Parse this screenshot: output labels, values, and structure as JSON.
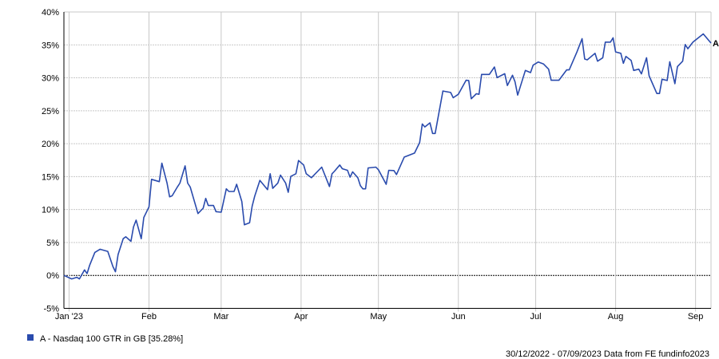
{
  "chart_data": {
    "type": "line",
    "title": "",
    "xlabel": "",
    "ylabel": "",
    "xlim": [
      "2022-12-30",
      "2023-09-07"
    ],
    "ylim": [
      -5,
      40
    ],
    "y_ticks": [
      -5,
      0,
      5,
      10,
      15,
      20,
      25,
      30,
      35,
      40
    ],
    "y_tick_labels": [
      "-5%",
      "0%",
      "5%",
      "10%",
      "15%",
      "20%",
      "25%",
      "30%",
      "35%",
      "40%"
    ],
    "x_ticks": [
      "2023-01-01",
      "2023-02-01",
      "2023-03-01",
      "2023-04-01",
      "2023-05-01",
      "2023-06-01",
      "2023-07-01",
      "2023-08-01",
      "2023-09-01"
    ],
    "x_tick_labels": [
      "Jan '23",
      "Feb",
      "Mar",
      "Apr",
      "May",
      "Jun",
      "Jul",
      "Aug",
      "Sep"
    ],
    "grid": true,
    "legend_position": "bottom-left",
    "series": [
      {
        "name": "A - Nasdaq 100 GTR in GB [35.28%]",
        "end_label": "A",
        "color": "#2a4bad",
        "points": [
          [
            "2022-12-30",
            0.0
          ],
          [
            "2023-01-02",
            -0.53
          ],
          [
            "2023-01-04",
            -0.29
          ],
          [
            "2023-01-05",
            -0.53
          ],
          [
            "2023-01-07",
            0.84
          ],
          [
            "2023-01-08",
            0.28
          ],
          [
            "2023-01-09",
            1.56
          ],
          [
            "2023-01-11",
            3.49
          ],
          [
            "2023-01-13",
            3.97
          ],
          [
            "2023-01-16",
            3.65
          ],
          [
            "2023-01-18",
            1.36
          ],
          [
            "2023-01-19",
            0.56
          ],
          [
            "2023-01-20",
            3.17
          ],
          [
            "2023-01-22",
            5.58
          ],
          [
            "2023-01-23",
            5.87
          ],
          [
            "2023-01-25",
            5.18
          ],
          [
            "2023-01-26",
            7.35
          ],
          [
            "2023-01-27",
            8.4
          ],
          [
            "2023-01-29",
            5.58
          ],
          [
            "2023-01-30",
            8.8
          ],
          [
            "2023-02-01",
            10.41
          ],
          [
            "2023-02-02",
            14.59
          ],
          [
            "2023-02-05",
            14.23
          ],
          [
            "2023-02-06",
            17.04
          ],
          [
            "2023-02-08",
            14.02
          ],
          [
            "2023-02-09",
            11.93
          ],
          [
            "2023-02-10",
            12.09
          ],
          [
            "2023-02-12",
            13.42
          ],
          [
            "2023-02-13",
            14.02
          ],
          [
            "2023-02-15",
            16.63
          ],
          [
            "2023-02-16",
            14.02
          ],
          [
            "2023-02-17",
            13.42
          ],
          [
            "2023-02-20",
            9.39
          ],
          [
            "2023-02-22",
            10.2
          ],
          [
            "2023-02-23",
            11.69
          ],
          [
            "2023-02-24",
            10.61
          ],
          [
            "2023-02-26",
            10.61
          ],
          [
            "2023-02-27",
            9.68
          ],
          [
            "2023-03-01",
            9.6
          ],
          [
            "2023-03-03",
            13.14
          ],
          [
            "2023-03-04",
            12.74
          ],
          [
            "2023-03-06",
            12.74
          ],
          [
            "2023-03-07",
            13.83
          ],
          [
            "2023-03-09",
            11.22
          ],
          [
            "2023-03-10",
            7.68
          ],
          [
            "2023-03-12",
            8.0
          ],
          [
            "2023-03-13",
            10.49
          ],
          [
            "2023-03-14",
            12.02
          ],
          [
            "2023-03-16",
            14.43
          ],
          [
            "2023-03-19",
            13.02
          ],
          [
            "2023-03-20",
            15.44
          ],
          [
            "2023-03-21",
            13.22
          ],
          [
            "2023-03-23",
            14.03
          ],
          [
            "2023-03-24",
            15.23
          ],
          [
            "2023-03-26",
            14.03
          ],
          [
            "2023-03-27",
            12.62
          ],
          [
            "2023-03-28",
            15.03
          ],
          [
            "2023-03-30",
            15.44
          ],
          [
            "2023-03-31",
            17.45
          ],
          [
            "2023-04-02",
            16.77
          ],
          [
            "2023-04-03",
            15.44
          ],
          [
            "2023-04-05",
            14.83
          ],
          [
            "2023-04-09",
            16.44
          ],
          [
            "2023-04-12",
            13.5
          ],
          [
            "2023-04-13",
            15.44
          ],
          [
            "2023-04-14",
            15.84
          ],
          [
            "2023-04-16",
            16.77
          ],
          [
            "2023-04-17",
            16.2
          ],
          [
            "2023-04-19",
            15.96
          ],
          [
            "2023-04-20",
            14.91
          ],
          [
            "2023-04-21",
            15.72
          ],
          [
            "2023-04-23",
            14.83
          ],
          [
            "2023-04-24",
            13.62
          ],
          [
            "2023-04-25",
            13.15
          ],
          [
            "2023-04-26",
            13.15
          ],
          [
            "2023-04-27",
            16.32
          ],
          [
            "2023-04-30",
            16.44
          ],
          [
            "2023-05-01",
            16.04
          ],
          [
            "2023-05-04",
            13.83
          ],
          [
            "2023-05-05",
            15.96
          ],
          [
            "2023-05-07",
            15.92
          ],
          [
            "2023-05-08",
            15.31
          ],
          [
            "2023-05-11",
            17.97
          ],
          [
            "2023-05-15",
            18.57
          ],
          [
            "2023-05-17",
            20.18
          ],
          [
            "2023-05-18",
            22.99
          ],
          [
            "2023-05-19",
            22.55
          ],
          [
            "2023-05-21",
            23.16
          ],
          [
            "2023-05-22",
            21.55
          ],
          [
            "2023-05-23",
            21.55
          ],
          [
            "2023-05-26",
            27.99
          ],
          [
            "2023-05-29",
            27.78
          ],
          [
            "2023-05-30",
            26.98
          ],
          [
            "2023-06-01",
            27.5
          ],
          [
            "2023-06-04",
            29.63
          ],
          [
            "2023-06-05",
            29.59
          ],
          [
            "2023-06-06",
            26.82
          ],
          [
            "2023-06-08",
            27.58
          ],
          [
            "2023-06-09",
            27.5
          ],
          [
            "2023-06-10",
            30.52
          ],
          [
            "2023-06-13",
            30.52
          ],
          [
            "2023-06-15",
            31.64
          ],
          [
            "2023-06-16",
            30.03
          ],
          [
            "2023-06-19",
            30.63
          ],
          [
            "2023-06-20",
            28.83
          ],
          [
            "2023-06-22",
            30.39
          ],
          [
            "2023-06-23",
            29.39
          ],
          [
            "2023-06-24",
            27.38
          ],
          [
            "2023-06-27",
            31.12
          ],
          [
            "2023-06-29",
            30.79
          ],
          [
            "2023-06-30",
            31.92
          ],
          [
            "2023-07-02",
            32.4
          ],
          [
            "2023-07-04",
            32.12
          ],
          [
            "2023-07-06",
            31.32
          ],
          [
            "2023-07-07",
            29.63
          ],
          [
            "2023-07-10",
            29.63
          ],
          [
            "2023-07-13",
            31.2
          ],
          [
            "2023-07-14",
            31.2
          ],
          [
            "2023-07-17",
            33.93
          ],
          [
            "2023-07-19",
            35.94
          ],
          [
            "2023-07-20",
            32.85
          ],
          [
            "2023-07-21",
            32.73
          ],
          [
            "2023-07-24",
            33.73
          ],
          [
            "2023-07-25",
            32.53
          ],
          [
            "2023-07-27",
            33.05
          ],
          [
            "2023-07-28",
            35.42
          ],
          [
            "2023-07-30",
            35.42
          ],
          [
            "2023-07-31",
            36.07
          ],
          [
            "2023-08-01",
            33.93
          ],
          [
            "2023-08-03",
            33.73
          ],
          [
            "2023-08-04",
            32.21
          ],
          [
            "2023-08-05",
            33.25
          ],
          [
            "2023-08-07",
            32.65
          ],
          [
            "2023-08-08",
            31.12
          ],
          [
            "2023-08-10",
            31.32
          ],
          [
            "2023-08-11",
            30.6
          ],
          [
            "2023-08-13",
            33.05
          ],
          [
            "2023-08-14",
            30.31
          ],
          [
            "2023-08-17",
            27.62
          ],
          [
            "2023-08-18",
            27.62
          ],
          [
            "2023-08-19",
            29.79
          ],
          [
            "2023-08-21",
            29.59
          ],
          [
            "2023-08-22",
            32.44
          ],
          [
            "2023-08-24",
            29.11
          ],
          [
            "2023-08-25",
            31.72
          ],
          [
            "2023-08-27",
            32.53
          ],
          [
            "2023-08-28",
            35.06
          ],
          [
            "2023-08-29",
            34.42
          ],
          [
            "2023-08-31",
            35.42
          ],
          [
            "2023-09-04",
            36.67
          ],
          [
            "2023-09-07",
            35.28
          ]
        ]
      }
    ],
    "footer": "30/12/2022 - 07/09/2023 Data from FE fundinfo2023"
  }
}
